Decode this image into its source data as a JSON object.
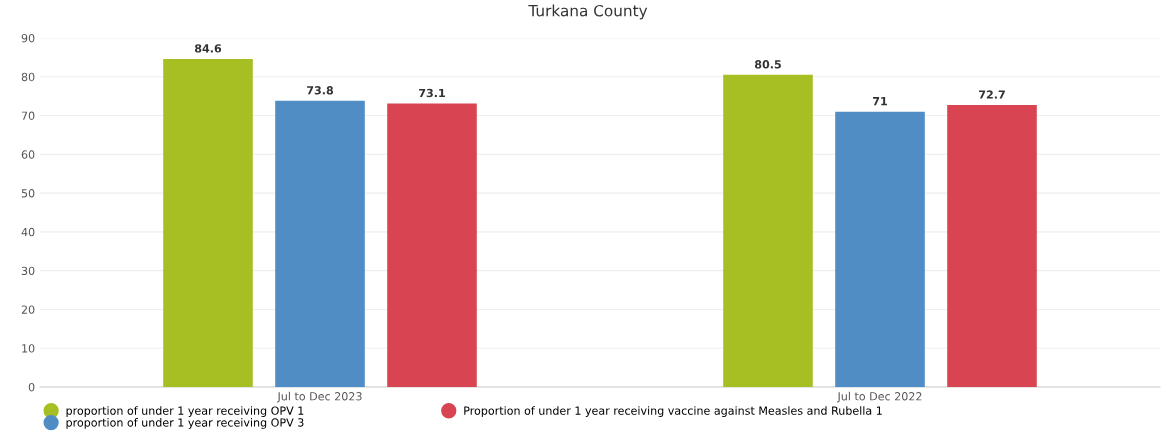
{
  "chart_data": {
    "type": "bar",
    "title": "Turkana County",
    "categories": [
      "Jul to Dec 2023",
      "Jul to Dec 2022"
    ],
    "series": [
      {
        "name": "proportion of under 1 year receiving OPV 1",
        "color": "#a8bf24",
        "values": [
          84.6,
          80.5
        ]
      },
      {
        "name": "proportion of under 1 year receiving OPV 3",
        "color": "#508dc5",
        "values": [
          73.8,
          71
        ]
      },
      {
        "name": "Proportion of under 1 year receiving vaccine against Measles and Rubella 1",
        "color": "#d94452",
        "values": [
          73.1,
          72.7
        ]
      }
    ],
    "ylim": [
      0,
      90
    ],
    "yticks": [
      0,
      10,
      20,
      30,
      40,
      50,
      60,
      70,
      80,
      90
    ],
    "grid": "y",
    "legend": "bottom",
    "marker": "circle",
    "data_labels": true
  }
}
